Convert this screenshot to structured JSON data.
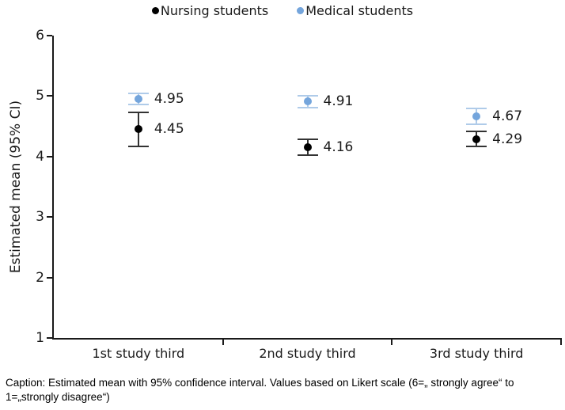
{
  "legend": {
    "items": [
      {
        "label": "Nursing students",
        "color": "#000000"
      },
      {
        "label": "Medical students",
        "color": "#74A5DC"
      }
    ]
  },
  "chart_data": {
    "type": "scatter",
    "subtype": "point_estimates_with_error_bars",
    "categories": [
      "1st study third",
      "2nd study third",
      "3rd study third"
    ],
    "series": [
      {
        "name": "Medical students",
        "marker_color": "#74A5DC",
        "errorbar_color": "#AFCBE9",
        "values": [
          4.95,
          4.91,
          4.67
        ],
        "ci_lower": [
          4.86,
          4.81,
          4.54
        ],
        "ci_upper": [
          5.04,
          5.01,
          4.8
        ],
        "data_labels": [
          "4.95",
          "4.91",
          "4.67"
        ]
      },
      {
        "name": "Nursing students",
        "marker_color": "#000000",
        "errorbar_color": "#333333",
        "values": [
          4.45,
          4.16,
          4.29
        ],
        "ci_lower": [
          4.17,
          4.03,
          4.17
        ],
        "ci_upper": [
          4.73,
          4.29,
          4.41
        ],
        "data_labels": [
          "4.45",
          "4.16",
          "4.29"
        ]
      }
    ],
    "title": "",
    "xlabel": "",
    "ylabel": "Estimated mean (95% CI)",
    "ylim": [
      1,
      6
    ],
    "yticks": [
      6,
      5,
      4,
      3,
      2,
      1
    ],
    "grid": false,
    "legend_position": "top-center"
  },
  "caption": {
    "text": "Caption: Estimated mean with 95% confidence interval. Values based on Likert scale (6=„ strongly agree“ to 1=„strongly disagree“)"
  }
}
